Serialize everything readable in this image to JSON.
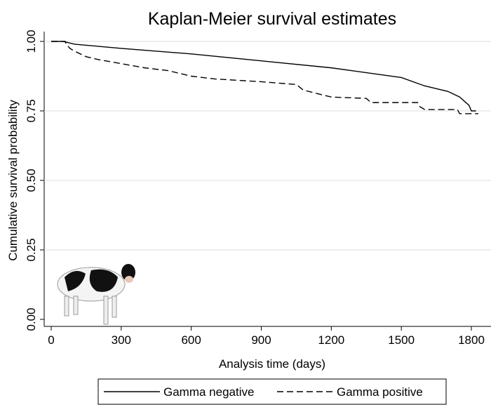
{
  "chart_data": {
    "type": "line",
    "title": "Kaplan-Meier survival estimates",
    "x_label": "Analysis time (days)",
    "y_label": "Cumulative survival probability",
    "xlim": [
      0,
      1800
    ],
    "xticks": [
      0,
      300,
      600,
      900,
      1200,
      1500,
      1800
    ],
    "ylim": [
      0,
      1
    ],
    "yticks": [
      {
        "value": 0,
        "label": "0.00"
      },
      {
        "value": 0.25,
        "label": "0.25"
      },
      {
        "value": 0.5,
        "label": "0.50"
      },
      {
        "value": 0.75,
        "label": "0.75"
      },
      {
        "value": 1,
        "label": "1.00"
      }
    ],
    "grid": true,
    "legend": "bottom",
    "series": [
      {
        "name": "Gamma negative",
        "color": "#000000",
        "style": "solid",
        "x": [
          0,
          50,
          100,
          300,
          600,
          900,
          1200,
          1500,
          1600,
          1700,
          1750,
          1790,
          1800,
          1820
        ],
        "values": [
          1,
          1,
          0.99,
          0.975,
          0.955,
          0.93,
          0.905,
          0.87,
          0.84,
          0.82,
          0.8,
          0.77,
          0.75,
          0.75
        ]
      },
      {
        "name": "Gamma positive",
        "color": "#000000",
        "style": "dashed",
        "x": [
          0,
          60,
          65,
          80,
          100,
          150,
          200,
          300,
          400,
          500,
          600,
          700,
          900,
          1050,
          1080,
          1150,
          1200,
          1350,
          1370,
          1570,
          1580,
          1600,
          1740,
          1750,
          1830
        ],
        "values": [
          1,
          1,
          0.99,
          0.975,
          0.965,
          0.945,
          0.935,
          0.92,
          0.905,
          0.895,
          0.875,
          0.865,
          0.855,
          0.845,
          0.825,
          0.81,
          0.8,
          0.795,
          0.78,
          0.78,
          0.765,
          0.755,
          0.755,
          0.74,
          0.74
        ]
      }
    ]
  }
}
